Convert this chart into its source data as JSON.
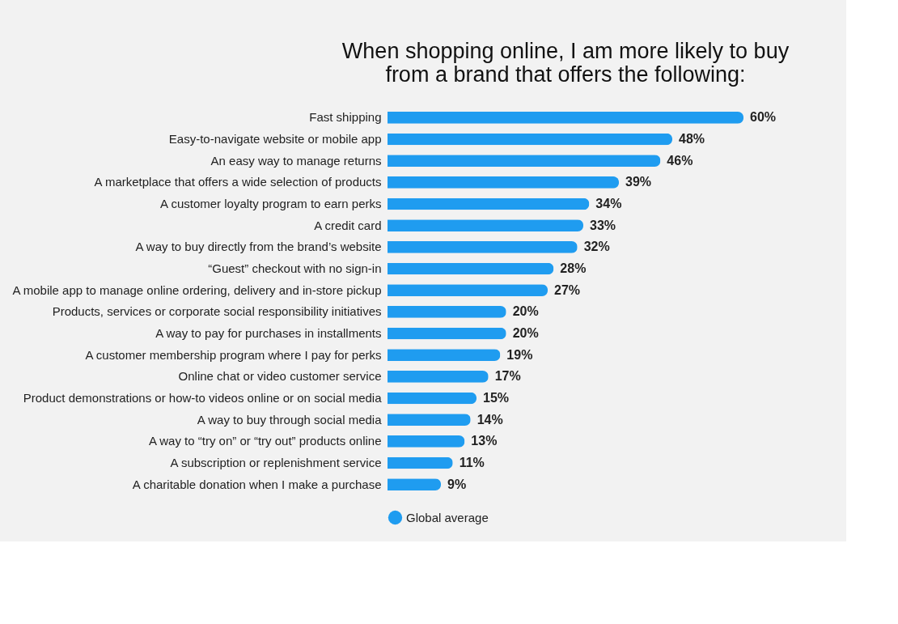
{
  "chart_data": {
    "type": "bar",
    "orientation": "horizontal",
    "title": [
      "When shopping online, I am more likely to buy",
      "from a brand that offers the following:"
    ],
    "categories": [
      "Fast shipping",
      "Easy-to-navigate website or mobile app",
      "An easy way to manage returns",
      "A marketplace that offers a wide selection of products",
      "A customer loyalty program to earn perks",
      "A credit card",
      "A way to buy directly from the brand’s website",
      "“Guest” checkout with no sign-in",
      "A mobile app to manage online ordering, delivery and in-store pickup",
      "Products, services or corporate social responsibility initiatives",
      "A way to pay for purchases in installments",
      "A customer membership program where I pay for perks",
      "Online chat or video customer service",
      "Product demonstrations or how-to videos online or on social media",
      "A way to buy through social media",
      "A way to “try on” or “try out” products online",
      "A subscription or replenishment service",
      "A charitable donation when I make a purchase"
    ],
    "series": [
      {
        "name": "Global average",
        "color": "#1f9cf0",
        "values": [
          60,
          48,
          46,
          39,
          34,
          33,
          32,
          28,
          27,
          20,
          20,
          19,
          17,
          15,
          14,
          13,
          11,
          9
        ],
        "value_labels": [
          "60%",
          "48%",
          "46%",
          "39%",
          "34%",
          "33%",
          "32%",
          "28%",
          "27%",
          "20%",
          "20%",
          "19%",
          "17%",
          "15%",
          "14%",
          "13%",
          "11%",
          "9%"
        ]
      }
    ],
    "legend": "bottom"
  }
}
